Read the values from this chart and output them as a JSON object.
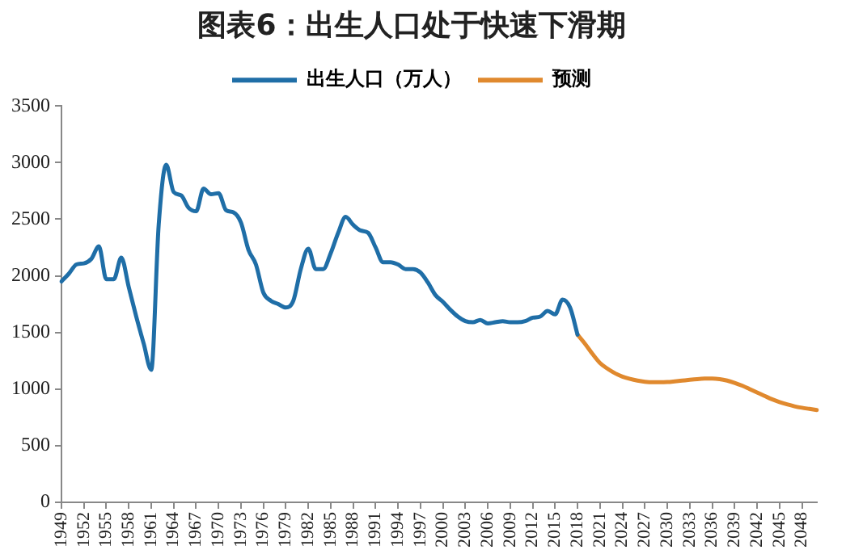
{
  "chart_data": {
    "type": "line",
    "title": "图表6：出生人口处于快速下滑期",
    "categories": [
      "1949",
      null,
      null,
      "1952",
      null,
      null,
      "1955",
      null,
      null,
      "1958",
      null,
      null,
      "1961",
      null,
      null,
      "1964",
      null,
      null,
      "1967",
      null,
      null,
      "1970",
      null,
      null,
      "1973",
      null,
      null,
      "1976",
      null,
      null,
      "1979",
      null,
      null,
      "1982",
      null,
      null,
      "1985",
      null,
      null,
      "1988",
      null,
      null,
      "1991",
      null,
      null,
      "1994",
      null,
      null,
      "1997",
      null,
      null,
      "2000",
      null,
      null,
      "2003",
      null,
      null,
      "2006",
      null,
      null,
      "2009",
      null,
      null,
      "2012",
      null,
      null,
      "2015",
      null,
      null,
      "2018",
      null,
      null,
      "2021",
      null,
      null,
      "2024",
      null,
      null,
      "2027",
      null,
      null,
      "2030",
      null,
      null,
      "2033",
      null,
      null,
      "2036",
      null,
      null,
      "2039",
      null,
      null,
      "2042",
      null,
      null,
      "2045",
      null,
      null,
      "2048",
      null,
      null
    ],
    "series": [
      {
        "name": "出生人口（万人）",
        "color": "#1f6ea7",
        "values": [
          1950,
          2020,
          2100,
          2110,
          2150,
          2260,
          1970,
          1970,
          2160,
          1900,
          1640,
          1400,
          1170,
          2450,
          2980,
          2740,
          2710,
          2600,
          2570,
          2770,
          2720,
          2730,
          2580,
          2560,
          2470,
          2230,
          2100,
          1850,
          1780,
          1750,
          1720,
          1780,
          2060,
          2240,
          2060,
          2060,
          2200,
          2380,
          2520,
          2450,
          2400,
          2380,
          2250,
          2120,
          2120,
          2100,
          2060,
          2060,
          2030,
          1940,
          1830,
          1770,
          1700,
          1640,
          1600,
          1590,
          1610,
          1580,
          1590,
          1600,
          1590,
          1590,
          1600,
          1630,
          1640,
          1690,
          1660,
          1790,
          1720,
          1480,
          null,
          null,
          null,
          null,
          null,
          null,
          null,
          null,
          null,
          null,
          null,
          null,
          null,
          null,
          null,
          null,
          null,
          null,
          null,
          null,
          null,
          null,
          null,
          null,
          null,
          null,
          null,
          null,
          null,
          null,
          null,
          null
        ]
      },
      {
        "name": "预测",
        "color": "#e0892e",
        "values": [
          null,
          null,
          null,
          null,
          null,
          null,
          null,
          null,
          null,
          null,
          null,
          null,
          null,
          null,
          null,
          null,
          null,
          null,
          null,
          null,
          null,
          null,
          null,
          null,
          null,
          null,
          null,
          null,
          null,
          null,
          null,
          null,
          null,
          null,
          null,
          null,
          null,
          null,
          null,
          null,
          null,
          null,
          null,
          null,
          null,
          null,
          null,
          null,
          null,
          null,
          null,
          null,
          null,
          null,
          null,
          null,
          null,
          null,
          null,
          null,
          null,
          null,
          null,
          null,
          null,
          null,
          null,
          null,
          null,
          1480,
          1400,
          1310,
          1230,
          1180,
          1140,
          1110,
          1090,
          1075,
          1065,
          1060,
          1060,
          1062,
          1068,
          1075,
          1082,
          1088,
          1092,
          1093,
          1088,
          1075,
          1055,
          1030,
          1000,
          970,
          940,
          910,
          885,
          865,
          848,
          835,
          825,
          815
        ]
      }
    ],
    "ylim": [
      0,
      3500
    ],
    "yticks": [
      0,
      500,
      1000,
      1500,
      2000,
      2500,
      3000,
      3500
    ],
    "grid": false,
    "legend": "top",
    "marker": "none",
    "line_style": "solid"
  }
}
